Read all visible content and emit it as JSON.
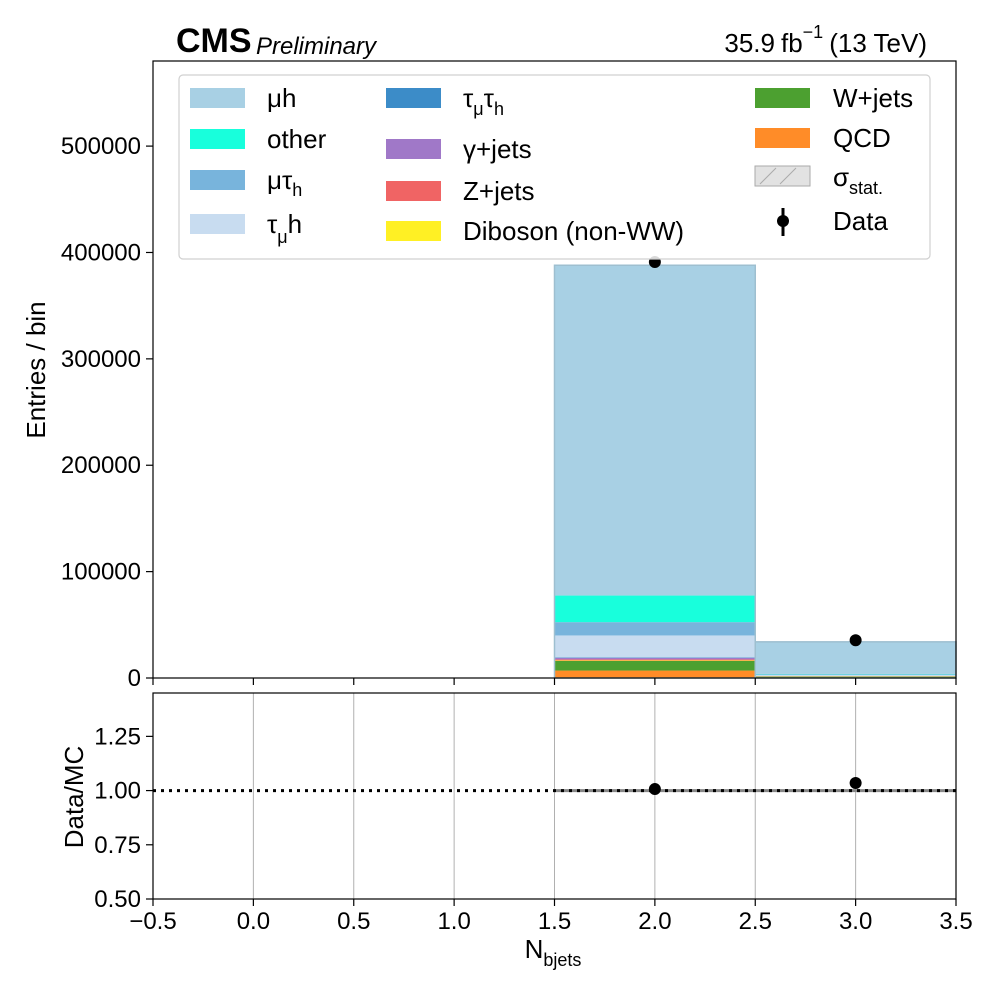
{
  "header": {
    "experiment": "CMS",
    "status": "Preliminary",
    "lumi_value": "35.9",
    "lumi_unit": "fb",
    "lumi_exp": "−1",
    "energy": "(13 TeV)"
  },
  "chart_data": [
    {
      "type": "bar",
      "stacked": true,
      "xlabel_main": "N",
      "xlabel_sub": "bjets",
      "ylabel": "Entries / bin",
      "xlim": [
        -0.5,
        3.5
      ],
      "ylim": [
        0,
        580000
      ],
      "x_ticks": [
        -0.5,
        0.0,
        0.5,
        1.0,
        1.5,
        2.0,
        2.5,
        3.0,
        3.5
      ],
      "x_tick_labels": [
        "−0.5",
        "0.0",
        "0.5",
        "1.0",
        "1.5",
        "2.0",
        "2.5",
        "3.0",
        "3.5"
      ],
      "y_ticks": [
        0,
        100000,
        200000,
        300000,
        400000,
        500000
      ],
      "y_tick_labels": [
        "0",
        "100000",
        "200000",
        "300000",
        "400000",
        "500000"
      ],
      "bins": [
        [
          1.5,
          2.5
        ],
        [
          2.5,
          3.5
        ]
      ],
      "series": [
        {
          "key": "qcd",
          "name": "QCD",
          "color": "#ff8c28",
          "values": [
            7000,
            600
          ]
        },
        {
          "key": "wjets",
          "name": "W+jets",
          "color": "#4ca030",
          "values": [
            9000,
            700
          ]
        },
        {
          "key": "diboson",
          "name": "Diboson (non-WW)",
          "color": "#fff024",
          "values": [
            500,
            300
          ]
        },
        {
          "key": "zjets",
          "name": "Z+jets",
          "color": "#f06464",
          "values": [
            1000,
            150
          ]
        },
        {
          "key": "gammajets",
          "name": "γ+jets",
          "color": "#a078c8",
          "values": [
            1500,
            150
          ]
        },
        {
          "key": "taumutauh",
          "name": "τμτh",
          "color": "#3c8cc8",
          "values": [
            500,
            100
          ]
        },
        {
          "key": "taumuh",
          "name": "τμh",
          "color": "#c8dcf0",
          "values": [
            20500,
            800
          ]
        },
        {
          "key": "mutauh",
          "name": "μτh",
          "color": "#78b4dc",
          "values": [
            12500,
            700
          ]
        },
        {
          "key": "other",
          "name": "other",
          "color": "#18ffdc",
          "values": [
            25000,
            300
          ]
        },
        {
          "key": "muh",
          "name": "μh",
          "color": "#a8d0e4",
          "values": [
            310500,
            30200
          ]
        }
      ],
      "data_points": {
        "name": "Data",
        "x": [
          2.0,
          3.0
        ],
        "y": [
          391000,
          35500
        ]
      },
      "stat_uncertainty": {
        "name": "σstat."
      },
      "legend_placement": "top"
    },
    {
      "type": "scatter",
      "ylabel": "Data/MC",
      "xlim": [
        -0.5,
        3.5
      ],
      "ylim": [
        0.5,
        1.45
      ],
      "y_ticks": [
        0.5,
        0.75,
        1.0,
        1.25
      ],
      "y_tick_labels": [
        "0.50",
        "0.75",
        "1.00",
        "1.25"
      ],
      "grid": true,
      "reference_line": 1.0,
      "points": {
        "x": [
          2.0,
          3.0
        ],
        "y": [
          1.007,
          1.035
        ]
      }
    }
  ]
}
